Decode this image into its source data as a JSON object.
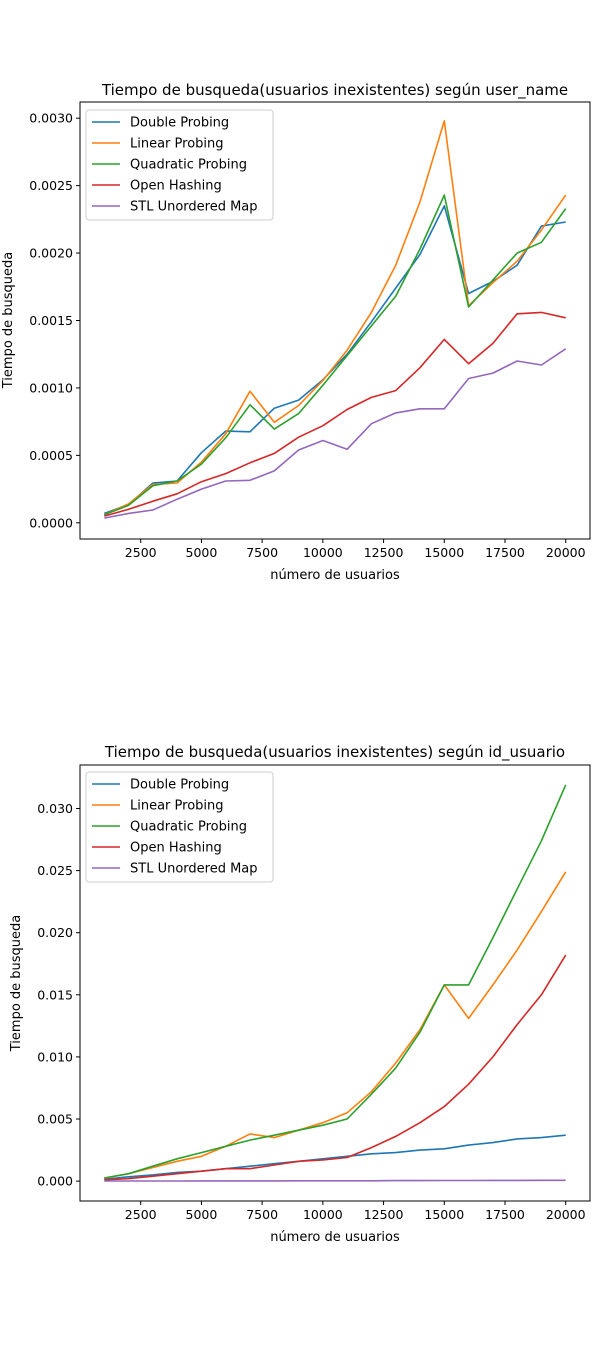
{
  "chart_data": [
    {
      "type": "line",
      "title": "Tiempo de busqueda(usuarios inexistentes) según user_name",
      "xlabel": "número de usuarios",
      "ylabel": "Tiempo de busqueda",
      "xlim": [
        0,
        21000
      ],
      "ylim": [
        -0.00012,
        0.00312
      ],
      "xticks": [
        2500,
        5000,
        7500,
        10000,
        12500,
        15000,
        17500,
        20000
      ],
      "xtick_labels": [
        "2500",
        "5000",
        "7500",
        "10000",
        "12500",
        "15000",
        "17500",
        "20000"
      ],
      "yticks": [
        0,
        0.0005,
        0.001,
        0.0015,
        0.002,
        0.0025,
        0.003
      ],
      "ytick_labels": [
        "0.0000",
        "0.0005",
        "0.0010",
        "0.0015",
        "0.0020",
        "0.0025",
        "0.0030"
      ],
      "legend_position": "top-left",
      "grid": false,
      "x": [
        1000,
        2000,
        3000,
        4000,
        5000,
        6000,
        7000,
        8000,
        9000,
        10000,
        11000,
        12000,
        13000,
        14000,
        15000,
        16000,
        17000,
        18000,
        19000,
        20000
      ],
      "series": [
        {
          "name": "Double Probing",
          "color": "#1f77b4",
          "values": [
            7e-05,
            0.000135,
            0.000295,
            0.00031,
            0.00052,
            0.00068,
            0.000675,
            0.00085,
            0.00091,
            0.00106,
            0.00125,
            0.00149,
            0.00174,
            0.00199,
            0.00235,
            0.0017,
            0.00179,
            0.00191,
            0.0022,
            0.00223
          ]
        },
        {
          "name": "Linear Probing",
          "color": "#ff7f0e",
          "values": [
            6e-05,
            0.00014,
            0.000285,
            0.000295,
            0.00045,
            0.00066,
            0.000975,
            0.000745,
            0.00087,
            0.001055,
            0.00128,
            0.00156,
            0.00191,
            0.00238,
            0.00298,
            0.00161,
            0.00178,
            0.00194,
            0.00217,
            0.00243
          ]
        },
        {
          "name": "Quadratic Probing",
          "color": "#2ca02c",
          "values": [
            6e-05,
            0.00013,
            0.000275,
            0.00031,
            0.000435,
            0.00063,
            0.000875,
            0.000695,
            0.00081,
            0.00102,
            0.00124,
            0.00146,
            0.00168,
            0.00203,
            0.00243,
            0.0016,
            0.0018,
            0.002,
            0.00208,
            0.00233
          ]
        },
        {
          "name": "Open Hashing",
          "color": "#d62728",
          "values": [
            5e-05,
            0.0001,
            0.00016,
            0.000215,
            0.000305,
            0.000365,
            0.000445,
            0.000515,
            0.000635,
            0.00072,
            0.00084,
            0.00093,
            0.00098,
            0.00115,
            0.00136,
            0.00118,
            0.00133,
            0.00155,
            0.00156,
            0.00152
          ]
        },
        {
          "name": "STL Unordered Map",
          "color": "#9467bd",
          "values": [
            3.5e-05,
            7e-05,
            9.5e-05,
            0.000175,
            0.00025,
            0.00031,
            0.000315,
            0.000385,
            0.00054,
            0.00061,
            0.000545,
            0.000735,
            0.000815,
            0.000845,
            0.000845,
            0.00107,
            0.00111,
            0.0012,
            0.00117,
            0.00129
          ]
        }
      ]
    },
    {
      "type": "line",
      "title": "Tiempo de busqueda(usuarios inexistentes) según id_usuario",
      "xlabel": "número de usuarios",
      "ylabel": "Tiempo de busqueda",
      "xlim": [
        0,
        21000
      ],
      "ylim": [
        -0.0016,
        0.0335
      ],
      "xticks": [
        2500,
        5000,
        7500,
        10000,
        12500,
        15000,
        17500,
        20000
      ],
      "xtick_labels": [
        "2500",
        "5000",
        "7500",
        "10000",
        "12500",
        "15000",
        "17500",
        "20000"
      ],
      "yticks": [
        0,
        0.005,
        0.01,
        0.015,
        0.02,
        0.025,
        0.03
      ],
      "ytick_labels": [
        "0.000",
        "0.005",
        "0.010",
        "0.015",
        "0.020",
        "0.025",
        "0.030"
      ],
      "legend_position": "top-left",
      "grid": false,
      "x": [
        1000,
        2000,
        3000,
        4000,
        5000,
        6000,
        7000,
        8000,
        9000,
        10000,
        11000,
        12000,
        13000,
        14000,
        15000,
        16000,
        17000,
        18000,
        19000,
        20000
      ],
      "series": [
        {
          "name": "Double Probing",
          "color": "#1f77b4",
          "values": [
            0.00015,
            0.00035,
            0.0005,
            0.0007,
            0.0008,
            0.001,
            0.0012,
            0.0014,
            0.0016,
            0.0018,
            0.002,
            0.0022,
            0.0023,
            0.0025,
            0.0026,
            0.0029,
            0.0031,
            0.0034,
            0.0035,
            0.0037
          ]
        },
        {
          "name": "Linear Probing",
          "color": "#ff7f0e",
          "values": [
            0.00025,
            0.0006,
            0.0011,
            0.0016,
            0.002,
            0.0028,
            0.0038,
            0.0035,
            0.0041,
            0.0047,
            0.0055,
            0.0072,
            0.0095,
            0.0122,
            0.0158,
            0.0131,
            0.0158,
            0.0186,
            0.0217,
            0.0249
          ]
        },
        {
          "name": "Quadratic Probing",
          "color": "#2ca02c",
          "values": [
            0.00025,
            0.0006,
            0.0012,
            0.0018,
            0.0023,
            0.0028,
            0.0033,
            0.0037,
            0.0041,
            0.0045,
            0.005,
            0.007,
            0.0091,
            0.012,
            0.0158,
            0.0158,
            0.0196,
            0.0235,
            0.0274,
            0.0319
          ]
        },
        {
          "name": "Open Hashing",
          "color": "#d62728",
          "values": [
            0.0001,
            0.0002,
            0.0004,
            0.0006,
            0.0008,
            0.001,
            0.001,
            0.0013,
            0.0016,
            0.0017,
            0.0019,
            0.0027,
            0.0036,
            0.0047,
            0.006,
            0.0078,
            0.01,
            0.0126,
            0.015,
            0.0182
          ]
        },
        {
          "name": "STL Unordered Map",
          "color": "#9467bd",
          "values": [
            1e-05,
            1e-05,
            1e-05,
            1e-05,
            2e-05,
            2e-05,
            2e-05,
            2e-05,
            3e-05,
            3e-05,
            3e-05,
            3e-05,
            4e-05,
            4e-05,
            5e-05,
            5e-05,
            6e-05,
            6e-05,
            7e-05,
            7e-05
          ]
        }
      ]
    }
  ]
}
